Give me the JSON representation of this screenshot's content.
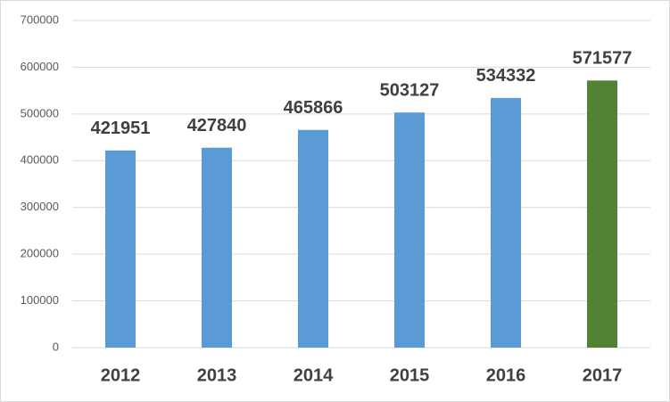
{
  "chart_data": {
    "type": "bar",
    "categories": [
      "2012",
      "2013",
      "2014",
      "2015",
      "2016",
      "2017"
    ],
    "values": [
      421951,
      427840,
      465866,
      503127,
      534332,
      571577
    ],
    "colors": [
      "#5b9bd5",
      "#5b9bd5",
      "#5b9bd5",
      "#5b9bd5",
      "#5b9bd5",
      "#548235"
    ],
    "ylim": [
      0,
      700000
    ],
    "yticks": [
      0,
      100000,
      200000,
      300000,
      400000,
      500000,
      600000,
      700000
    ],
    "grid": true
  }
}
